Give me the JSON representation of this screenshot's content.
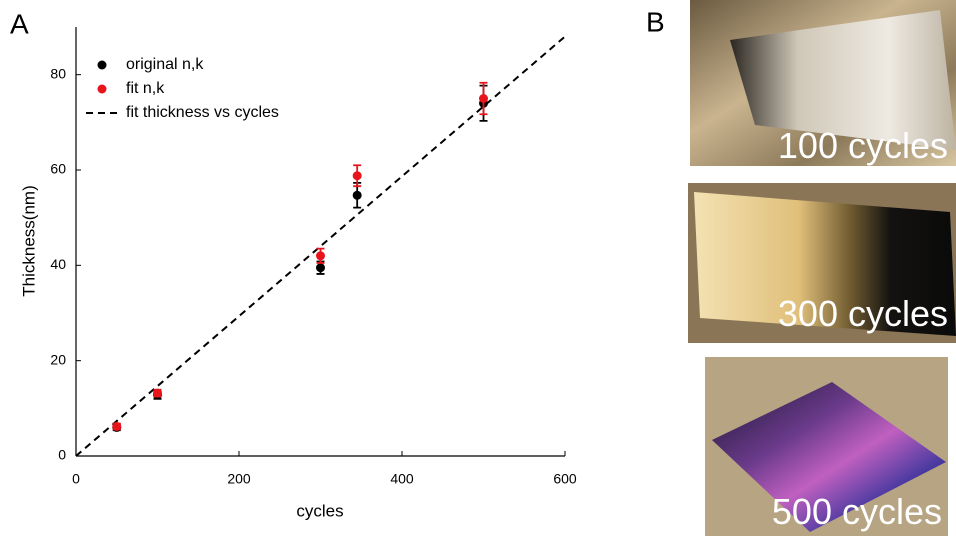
{
  "panels": {
    "a": "A",
    "b": "B"
  },
  "chart_data": {
    "type": "scatter",
    "x_label": "cycles",
    "y_label": "Thickness(nm)",
    "xlim": [
      0,
      600
    ],
    "ylim": [
      0,
      90
    ],
    "xticks": [
      0,
      200,
      400,
      600
    ],
    "yticks": [
      0,
      20,
      40,
      60,
      80
    ],
    "legend": "upper left",
    "series": [
      {
        "name": "original n,k",
        "color": "#000000",
        "type": "scatter",
        "x": [
          50,
          100,
          300,
          345,
          500
        ],
        "values": [
          6.0,
          12.8,
          39.5,
          54.7,
          74.0
        ],
        "errors": [
          0.6,
          0.8,
          1.3,
          2.6,
          3.7
        ]
      },
      {
        "name": "fit n,k",
        "color": "#e8141c",
        "type": "scatter",
        "x": [
          50,
          100,
          300,
          345,
          500
        ],
        "values": [
          6.2,
          13.2,
          42.0,
          58.8,
          75.0
        ],
        "errors": [
          0.6,
          0.7,
          1.5,
          2.2,
          3.3
        ]
      },
      {
        "name": "fit thickness vs cycles",
        "color": "#000000",
        "type": "line",
        "dash": "dashed",
        "x": [
          0,
          600
        ],
        "values": [
          0,
          88
        ]
      }
    ]
  },
  "photos": [
    {
      "caption": "100 cycles"
    },
    {
      "caption": "300 cycles"
    },
    {
      "caption": "500 cycles"
    }
  ]
}
